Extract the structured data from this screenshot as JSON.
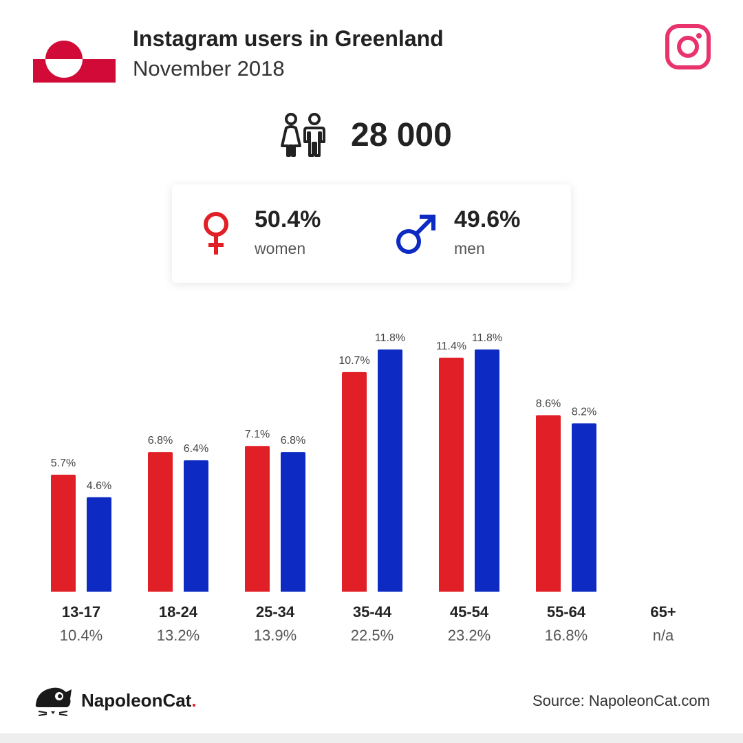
{
  "header": {
    "title": "Instagram users in Greenland",
    "subtitle": "November 2018"
  },
  "total": {
    "value": "28 000"
  },
  "gender": {
    "women": {
      "pct": "50.4%",
      "label": "women"
    },
    "men": {
      "pct": "49.6%",
      "label": "men"
    }
  },
  "colors": {
    "women": "#e01f26",
    "men": "#0d2ac2",
    "instagram": "#e8336d",
    "flag_red": "#d10a37"
  },
  "chart_data": {
    "type": "bar",
    "categories": [
      "13-17",
      "18-24",
      "25-34",
      "35-44",
      "45-54",
      "55-64",
      "65+"
    ],
    "category_totals": [
      "10.4%",
      "13.2%",
      "13.9%",
      "22.5%",
      "23.2%",
      "16.8%",
      "n/a"
    ],
    "series": [
      {
        "name": "women",
        "values": [
          5.7,
          6.8,
          7.1,
          10.7,
          11.4,
          8.6,
          null
        ],
        "labels": [
          "5.7%",
          "6.8%",
          "7.1%",
          "10.7%",
          "11.4%",
          "8.6%",
          ""
        ]
      },
      {
        "name": "men",
        "values": [
          4.6,
          6.4,
          6.8,
          11.8,
          11.8,
          8.2,
          null
        ],
        "labels": [
          "4.6%",
          "6.4%",
          "6.8%",
          "11.8%",
          "11.8%",
          "8.2%",
          ""
        ]
      }
    ],
    "ylim": [
      0,
      11.8
    ],
    "grid": false
  },
  "footer": {
    "brand": "NapoleonCat",
    "brand_dot": ".",
    "source": "Source: NapoleonCat.com"
  }
}
